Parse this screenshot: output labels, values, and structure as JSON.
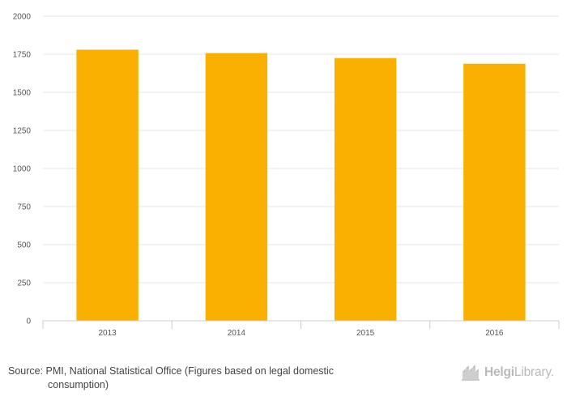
{
  "chart_data": {
    "type": "bar",
    "categories": [
      "2013",
      "2014",
      "2015",
      "2016"
    ],
    "values": [
      1780,
      1758,
      1725,
      1688
    ],
    "ylim": [
      0,
      2000
    ],
    "yticks": [
      0,
      250,
      500,
      750,
      1000,
      1250,
      1500,
      1750,
      2000
    ],
    "grid": true,
    "bar_color": "#f9b000",
    "title": "",
    "xlabel": "",
    "ylabel": ""
  },
  "footer": {
    "source_line1": "Source: PMI, National Statistical Office (Figures based on legal domestic",
    "source_line2": "consumption)",
    "brand_bold": "Helgi",
    "brand_light": "Library."
  }
}
